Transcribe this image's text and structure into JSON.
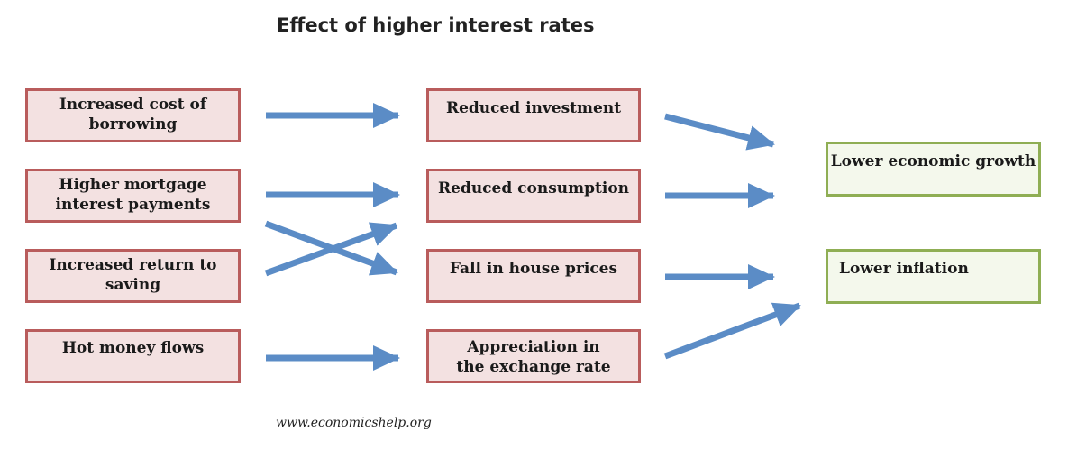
{
  "title": "Effect of higher interest rates",
  "causes": [
    "Increased cost of borrowing",
    "Higher mortgage interest payments",
    "Increased return to saving",
    "Hot money flows"
  ],
  "effects": [
    "Reduced investment",
    "Reduced consumption",
    "Fall in house prices",
    "Appreciation in the exchange rate"
  ],
  "outcomes": [
    "Lower economic growth",
    "Lower inflation"
  ],
  "footer": "www.economicshelp.org",
  "colors": {
    "cause_fill": "#f3e1e1",
    "cause_border": "#b95c5c",
    "outcome_fill": "#f4f8ec",
    "outcome_border": "#8fae54",
    "arrow": "#5b8cc6"
  }
}
